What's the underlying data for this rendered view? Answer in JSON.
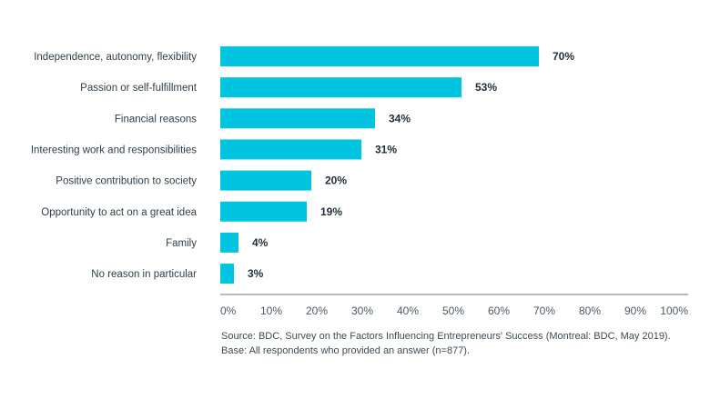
{
  "chart_data": {
    "type": "bar",
    "orientation": "horizontal",
    "title": "",
    "xlabel": "",
    "ylabel": "",
    "categories": [
      "Independence, autonomy, flexibility",
      "Passion or self-fulfillment",
      "Financial reasons",
      "Interesting work and responsibilities",
      "Positive contribution to society",
      "Opportunity to act on a great idea",
      "Family",
      "No reason in particular"
    ],
    "values": [
      70,
      53,
      34,
      31,
      20,
      19,
      4,
      3
    ],
    "value_labels": [
      "70%",
      "53%",
      "34%",
      "31%",
      "20%",
      "19%",
      "4%",
      "3%"
    ],
    "xlim": [
      0,
      100
    ],
    "x_ticks": [
      0,
      10,
      20,
      30,
      40,
      50,
      60,
      70,
      80,
      90,
      100
    ],
    "x_tick_labels": [
      "0%",
      "10%",
      "20%",
      "30%",
      "40%",
      "50%",
      "60%",
      "70%",
      "80%",
      "90%",
      "100%"
    ],
    "grid": false,
    "bar_color": "#00c4e0"
  },
  "notes": {
    "source": "Source: BDC, Survey on the Factors Influencing Entrepreneurs' Success (Montreal: BDC, May 2019).",
    "base": "Base: All respondents who provided an answer (n=877)."
  }
}
